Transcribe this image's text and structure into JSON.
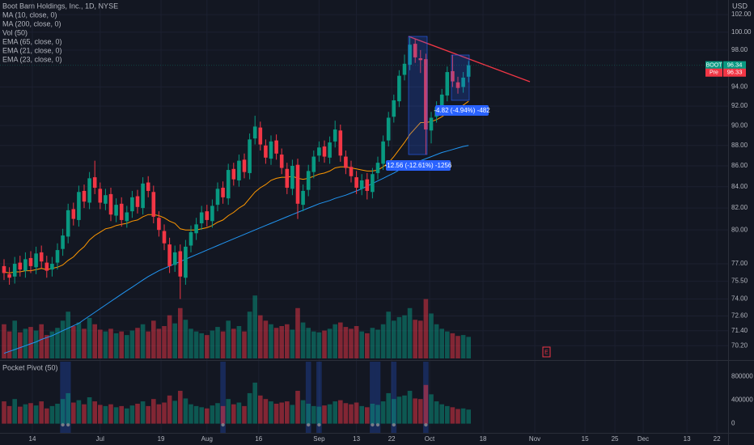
{
  "chart_data": {
    "type": "candlestick",
    "title": "Boot Barn Holdings, Inc., 1D, NYSE",
    "currency": "USD",
    "indicators": [
      "MA (10, close, 0)",
      "MA (200, close, 0)",
      "Vol (50)",
      "EMA (65, close, 0)",
      "EMA (21, close, 0)",
      "EMA (23, close, 0)"
    ],
    "up_color": "#089981",
    "down_color": "#f23645",
    "log_scale": true,
    "grid": true,
    "ylim": [
      69.2,
      103.7
    ],
    "yticks": [
      {
        "value": 102,
        "label": "102.00"
      },
      {
        "value": 100,
        "label": "100.00"
      },
      {
        "value": 98,
        "label": "98.00"
      },
      {
        "value": 94,
        "label": "94.00"
      },
      {
        "value": 92,
        "label": "92.00"
      },
      {
        "value": 90,
        "label": "90.00"
      },
      {
        "value": 88,
        "label": "88.00"
      },
      {
        "value": 86,
        "label": "86.00"
      },
      {
        "value": 84,
        "label": "84.00"
      },
      {
        "value": 82,
        "label": "82.00"
      },
      {
        "value": 80,
        "label": "80.00"
      },
      {
        "value": 77,
        "label": "77.00"
      },
      {
        "value": 75.5,
        "label": "75.50"
      },
      {
        "value": 74,
        "label": "74.00"
      },
      {
        "value": 72.6,
        "label": "72.60"
      },
      {
        "value": 71.4,
        "label": "71.40"
      },
      {
        "value": 70.2,
        "label": "70.20"
      }
    ],
    "xticks": [
      {
        "value": 5.3,
        "label": "14"
      },
      {
        "value": 18,
        "label": "Jul"
      },
      {
        "value": 29.4,
        "label": "19"
      },
      {
        "value": 38,
        "label": "Aug"
      },
      {
        "value": 47.7,
        "label": "16"
      },
      {
        "value": 59,
        "label": "Sep"
      },
      {
        "value": 66,
        "label": "13"
      },
      {
        "value": 72.6,
        "label": "22"
      },
      {
        "value": 79.7,
        "label": "Oct"
      },
      {
        "value": 89.7,
        "label": "18"
      },
      {
        "value": 99.4,
        "label": "Nov"
      },
      {
        "value": 108.8,
        "label": "15"
      },
      {
        "value": 114.4,
        "label": "25"
      },
      {
        "value": 119.7,
        "label": "Dec"
      },
      {
        "value": 127.9,
        "label": "13"
      },
      {
        "value": 133.5,
        "label": "22"
      }
    ],
    "open": [
      76.8,
      76.1,
      75.9,
      77.1,
      76.4,
      77.5,
      76.7,
      78.0,
      77.1,
      76.5,
      77.1,
      78.3,
      79.4,
      81.9,
      80.9,
      83.6,
      82.5,
      84.9,
      83.8,
      82.4,
      83.3,
      81.3,
      82.4,
      80.8,
      81.7,
      83.1,
      82.0,
      84.4,
      83.5,
      81.1,
      79.9,
      78.7,
      76.9,
      78.1,
      75.8,
      78.6,
      79.7,
      80.6,
      81.7,
      80.8,
      82.3,
      83.9,
      82.9,
      85.7,
      84.6,
      86.6,
      85.3,
      88.7,
      89.8,
      88.0,
      86.7,
      88.5,
      87.1,
      85.7,
      83.8,
      86.1,
      82.3,
      83.7,
      85.4,
      87.0,
      87.9,
      86.8,
      88.4,
      89.5,
      86.9,
      85.9,
      84.9,
      83.8,
      84.7,
      83.5,
      85.3,
      86.2,
      88.5,
      90.9,
      92.5,
      95.3,
      96.4,
      98.7,
      97.1,
      97.0,
      89.5,
      90.9,
      92.0,
      93.1,
      95.7,
      94.5,
      94.0,
      95.1
    ],
    "high": [
      77.4,
      76.7,
      77.6,
      77.7,
      78.0,
      78.1,
      78.5,
      78.6,
      77.7,
      77.6,
      78.8,
      80.1,
      82.4,
      82.5,
      84.1,
      84.2,
      85.4,
      86.5,
      84.4,
      83.8,
      83.9,
      82.9,
      83.0,
      82.2,
      83.6,
      83.7,
      84.9,
      85.0,
      84.1,
      81.7,
      80.5,
      79.3,
      78.6,
      78.7,
      79.1,
      80.4,
      81.1,
      82.2,
      82.3,
      82.8,
      84.4,
      84.5,
      86.2,
      86.3,
      87.1,
      87.2,
      89.2,
      91.0,
      90.4,
      88.6,
      89.0,
      89.1,
      87.7,
      86.3,
      86.6,
      86.7,
      84.2,
      86.1,
      87.5,
      88.4,
      88.5,
      88.9,
      90.5,
      90.1,
      87.5,
      86.5,
      85.5,
      85.2,
      85.3,
      85.8,
      86.9,
      89.0,
      91.4,
      93.2,
      95.8,
      97.5,
      99.4,
      99.3,
      98.0,
      97.6,
      91.4,
      92.5,
      93.8,
      96.2,
      97.5,
      95.1,
      95.6,
      96.8
    ],
    "low": [
      75.6,
      75.2,
      75.3,
      75.9,
      75.8,
      76.2,
      76.1,
      76.6,
      75.8,
      75.9,
      76.5,
      77.7,
      78.8,
      80.4,
      80.3,
      82.0,
      81.9,
      83.3,
      81.9,
      81.8,
      80.8,
      80.7,
      80.3,
      80.2,
      81.1,
      81.5,
      81.4,
      83.0,
      80.6,
      79.4,
      78.2,
      76.2,
      76.3,
      74.0,
      75.2,
      78.0,
      79.1,
      80.0,
      80.3,
      80.2,
      81.7,
      82.4,
      82.3,
      84.1,
      84.0,
      84.8,
      84.7,
      88.1,
      87.5,
      86.2,
      86.1,
      86.6,
      85.2,
      83.3,
      83.2,
      81.0,
      81.7,
      83.1,
      84.8,
      86.4,
      86.3,
      86.2,
      87.8,
      86.4,
      85.2,
      84.4,
      83.3,
      83.2,
      82.8,
      82.9,
      84.7,
      85.6,
      87.9,
      90.3,
      91.9,
      94.7,
      95.8,
      96.6,
      95.5,
      87.1,
      88.2,
      90.3,
      91.4,
      92.5,
      94.0,
      93.3,
      93.4,
      94.5
    ],
    "close": [
      76.2,
      75.8,
      77.0,
      76.5,
      77.4,
      76.8,
      77.9,
      77.2,
      76.4,
      77.0,
      78.2,
      79.5,
      81.8,
      81.0,
      83.5,
      82.6,
      84.8,
      83.9,
      82.5,
      83.2,
      81.4,
      82.3,
      80.9,
      81.6,
      83.0,
      82.1,
      84.3,
      83.6,
      81.2,
      80.0,
      78.8,
      76.8,
      78.0,
      75.9,
      78.5,
      79.8,
      80.5,
      81.6,
      80.9,
      82.2,
      83.8,
      83.0,
      85.6,
      84.7,
      86.5,
      85.4,
      88.6,
      89.9,
      88.1,
      86.8,
      88.4,
      87.2,
      85.8,
      83.9,
      86.0,
      82.4,
      83.6,
      85.5,
      86.9,
      87.8,
      86.9,
      88.3,
      89.6,
      87.0,
      85.8,
      85.0,
      83.9,
      84.6,
      83.6,
      85.2,
      86.3,
      88.4,
      90.8,
      92.6,
      95.2,
      96.5,
      98.6,
      97.2,
      96.9,
      89.6,
      90.8,
      91.9,
      93.2,
      95.6,
      94.6,
      93.9,
      95.0,
      96.34
    ],
    "volume": [
      380000,
      300000,
      420000,
      290000,
      330000,
      350000,
      310000,
      380000,
      260000,
      300000,
      340000,
      420000,
      520000,
      360000,
      400000,
      330000,
      450000,
      380000,
      320000,
      300000,
      330000,
      280000,
      300000,
      260000,
      310000,
      340000,
      380000,
      300000,
      420000,
      330000,
      360000,
      480000,
      390000,
      560000,
      430000,
      330000,
      300000,
      280000,
      260000,
      310000,
      350000,
      300000,
      420000,
      330000,
      360000,
      300000,
      520000,
      700000,
      480000,
      420000,
      380000,
      340000,
      360000,
      380000,
      320000,
      560000,
      400000,
      340000,
      300000,
      290000,
      310000,
      330000,
      380000,
      400000,
      350000,
      330000,
      360000,
      300000,
      280000,
      340000,
      320000,
      380000,
      520000,
      420000,
      460000,
      480000,
      560000,
      430000,
      420000,
      660000,
      500000,
      380000,
      330000,
      300000,
      280000,
      250000,
      260000,
      240000
    ],
    "volume_lim": [
      0,
      900000
    ],
    "lines": [
      {
        "color": "#2196f3",
        "values": [
          69.6,
          69.75,
          69.9,
          70.05,
          70.2,
          70.35,
          70.5,
          70.7,
          70.85,
          71.0,
          71.2,
          71.4,
          71.6,
          71.8,
          72.0,
          72.3,
          72.6,
          72.9,
          73.2,
          73.5,
          73.8,
          74.1,
          74.4,
          74.7,
          75.0,
          75.3,
          75.6,
          75.9,
          76.15,
          76.4,
          76.6,
          76.8,
          77.0,
          77.2,
          77.4,
          77.6,
          77.8,
          78.0,
          78.2,
          78.4,
          78.6,
          78.8,
          79.0,
          79.2,
          79.4,
          79.6,
          79.8,
          80.0,
          80.2,
          80.4,
          80.6,
          80.8,
          81.0,
          81.2,
          81.4,
          81.6,
          81.8,
          82.0,
          82.2,
          82.4,
          82.55,
          82.7,
          82.9,
          83.05,
          83.2,
          83.4,
          83.6,
          83.8,
          84.05,
          84.3,
          84.55,
          84.8,
          85.05,
          85.3,
          85.6,
          85.9,
          86.1,
          86.3,
          86.5,
          86.7,
          86.9,
          87.1,
          87.3,
          87.45,
          87.6,
          87.75,
          87.9,
          88.0
        ]
      },
      {
        "color": "#ff9800",
        "values": [
          76.3,
          76.2,
          76.3,
          76.3,
          76.4,
          76.4,
          76.5,
          76.6,
          76.5,
          76.6,
          76.7,
          76.9,
          77.3,
          77.6,
          78.1,
          78.5,
          79.1,
          79.5,
          79.8,
          80.1,
          80.2,
          80.4,
          80.5,
          80.6,
          80.8,
          80.9,
          81.2,
          81.4,
          81.4,
          81.3,
          81.1,
          80.8,
          80.6,
          80.1,
          80.0,
          80.0,
          80.0,
          80.1,
          80.2,
          80.4,
          80.7,
          80.9,
          81.3,
          81.6,
          82.0,
          82.3,
          82.9,
          83.5,
          83.9,
          84.2,
          84.6,
          84.8,
          84.9,
          84.9,
          85.0,
          84.8,
          84.7,
          84.8,
          85.0,
          85.2,
          85.3,
          85.5,
          85.8,
          85.9,
          85.9,
          85.8,
          85.7,
          85.6,
          85.5,
          85.5,
          85.6,
          85.9,
          86.3,
          86.9,
          87.6,
          88.3,
          89.1,
          89.7,
          90.3,
          90.3,
          90.4,
          90.6,
          90.9,
          91.3,
          91.6,
          91.8,
          92.1,
          92.5
        ]
      }
    ],
    "last_price": {
      "label": "BOOT",
      "value": 96.34
    },
    "premarket": {
      "label": "Pre",
      "value": 96.33
    },
    "annotations": [
      "-12.56 (-12.61%) -1256",
      "-4.82 (-4.94%) -482"
    ],
    "earnings_label": "E",
    "pocket_pivot": {
      "title": "Pocket Pivot (50)",
      "ylim": [
        -157000,
        1057000
      ],
      "yticks": [
        0,
        400000,
        800000
      ],
      "signals": [
        11,
        12,
        41,
        57,
        59,
        69,
        70,
        73,
        79
      ]
    }
  }
}
